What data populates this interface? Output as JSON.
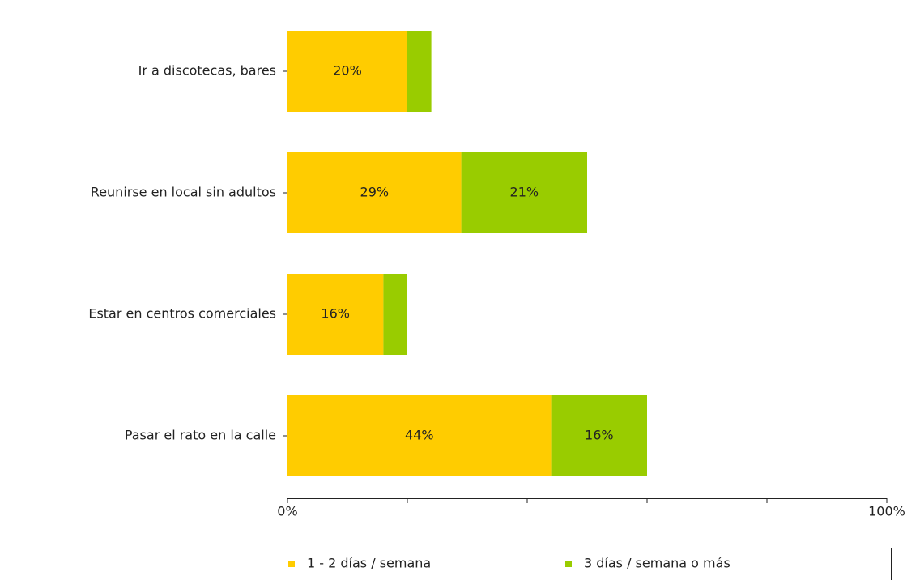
{
  "chart_data": {
    "type": "stacked-bar-horizontal",
    "categories": [
      "Ir a discotecas, bares",
      "Reunirse en local sin adultos",
      "Estar en centros comerciales",
      "Pasar el rato en la calle"
    ],
    "series": [
      {
        "name": "1 - 2 días / semana",
        "color": "#ffcc00",
        "values": [
          20,
          29,
          16,
          44
        ],
        "value_labels": [
          "20%",
          "29%",
          "16%",
          "44%"
        ]
      },
      {
        "name": "3 días / semana o más",
        "color": "#99cc00",
        "values": [
          4,
          21,
          4,
          16
        ],
        "value_labels": [
          null,
          "21%",
          null,
          "16%"
        ]
      }
    ],
    "xlim": [
      0,
      100
    ],
    "xticks": [
      {
        "value": 0,
        "label": "0%"
      },
      20,
      40,
      60,
      {
        "value": 80,
        "label": ""
      },
      {
        "value": 100,
        "label": "100%"
      }
    ],
    "legend": "bottom"
  }
}
